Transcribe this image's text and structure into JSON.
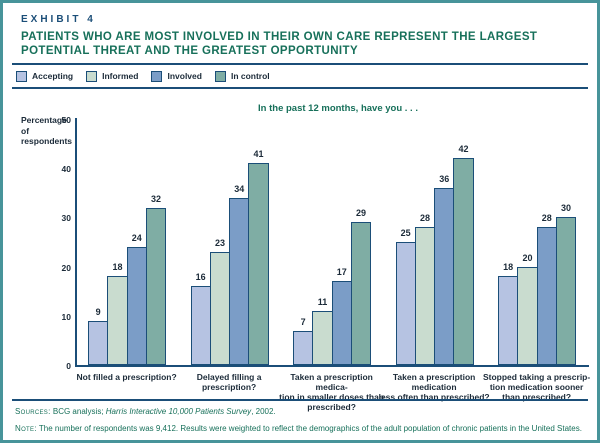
{
  "page": {
    "exhibit_label": "EXHIBIT 4",
    "title": "PATIENTS WHO ARE MOST INVOLVED IN THEIR OWN CARE REPRESENT THE LARGEST POTENTIAL THREAT AND THE GREATEST OPPORTUNITY"
  },
  "legend": {
    "items": [
      {
        "label": "Accepting",
        "color": "#b6c3e2"
      },
      {
        "label": "Informed",
        "color": "#c9dccf"
      },
      {
        "label": "Involved",
        "color": "#7b9dc7"
      },
      {
        "label": "In control",
        "color": "#7fada4"
      }
    ]
  },
  "chart_data": {
    "type": "bar",
    "title": "In the past 12 months, have you . . .",
    "ylabel": "Percentage of respondents",
    "ylim": [
      0,
      50
    ],
    "yticks": [
      0,
      10,
      20,
      30,
      40,
      50
    ],
    "grid": false,
    "legend_position": "top-left",
    "categories": [
      "Not filled a prescription?",
      "Delayed filling a\nprescription?",
      "Taken a prescription medica-\ntion in smaller doses than\nprescribed?",
      "Taken a prescription medication\nless often than prescribed?",
      "Stopped taking a prescrip-\ntion medication sooner\nthan prescribed?"
    ],
    "series": [
      {
        "name": "Accepting",
        "color": "#b6c3e2",
        "values": [
          9,
          16,
          7,
          25,
          18
        ]
      },
      {
        "name": "Informed",
        "color": "#c9dccf",
        "values": [
          18,
          23,
          11,
          28,
          20
        ]
      },
      {
        "name": "Involved",
        "color": "#7b9dc7",
        "values": [
          24,
          34,
          17,
          36,
          28
        ]
      },
      {
        "name": "In control",
        "color": "#7fada4",
        "values": [
          32,
          41,
          29,
          42,
          30
        ]
      }
    ]
  },
  "footer": {
    "sources_label": "Sources:",
    "sources_text_plain": " BCG analysis; ",
    "sources_text_italic": "Harris Interactive 10,000 Patients Survey",
    "sources_text_end": ", 2002.",
    "note_label": "Note:",
    "note_text": " The number of respondents was 9,412. Results were weighted to reflect the demographics of the adult population of chronic patients in the United States."
  },
  "colors": {
    "border_teal": "#47949a",
    "navy": "#1b4e78",
    "green": "#17705a",
    "text_dark": "#1b2a38"
  }
}
